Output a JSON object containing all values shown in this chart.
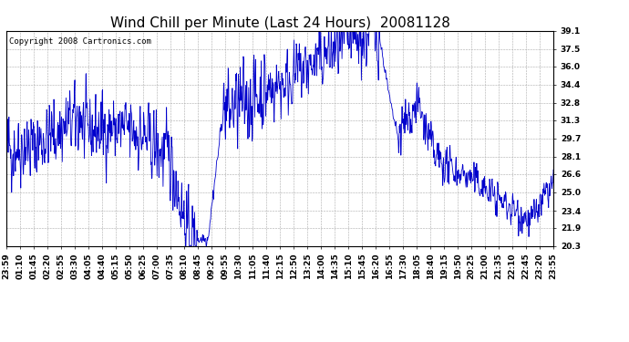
{
  "title": "Wind Chill per Minute (Last 24 Hours)  20081128",
  "copyright": "Copyright 2008 Cartronics.com",
  "line_color": "#0000CC",
  "background_color": "#ffffff",
  "plot_bg_color": "#ffffff",
  "grid_color": "#aaaaaa",
  "yticks": [
    20.3,
    21.9,
    23.4,
    25.0,
    26.6,
    28.1,
    29.7,
    31.3,
    32.8,
    34.4,
    36.0,
    37.5,
    39.1
  ],
  "ylim": [
    20.3,
    39.1
  ],
  "xtick_labels": [
    "23:59",
    "01:10",
    "01:45",
    "02:20",
    "02:55",
    "03:30",
    "04:05",
    "04:40",
    "05:15",
    "05:50",
    "06:25",
    "07:00",
    "07:35",
    "08:10",
    "08:45",
    "09:20",
    "09:55",
    "10:30",
    "11:05",
    "11:40",
    "12:15",
    "12:50",
    "13:25",
    "14:00",
    "14:35",
    "15:10",
    "15:45",
    "16:20",
    "16:55",
    "17:30",
    "18:05",
    "18:40",
    "19:15",
    "19:50",
    "20:25",
    "21:00",
    "21:35",
    "22:10",
    "22:45",
    "23:20",
    "23:55"
  ],
  "title_fontsize": 11,
  "tick_fontsize": 6.5,
  "copyright_fontsize": 6.5
}
